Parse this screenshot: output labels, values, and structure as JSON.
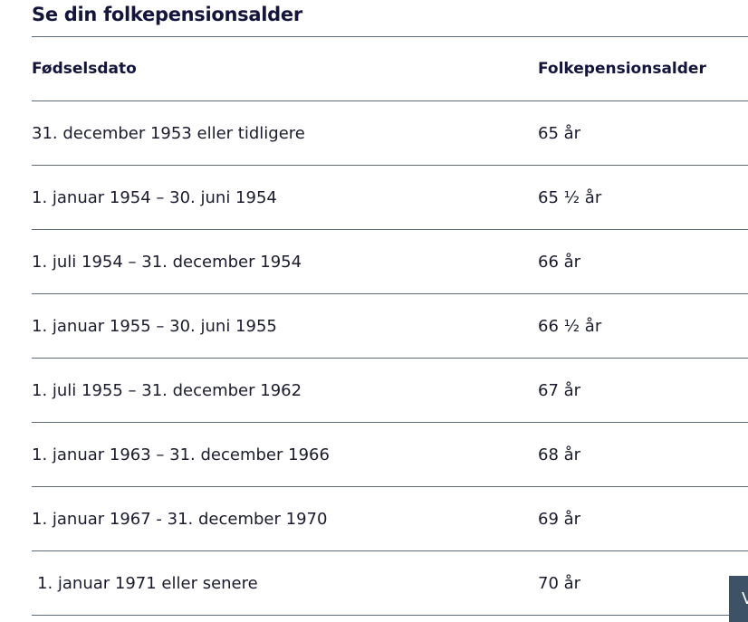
{
  "header": {
    "title": "Se din folkepensionsalder"
  },
  "table": {
    "columns": [
      "Fødselsdato",
      "Folkepensionsalder"
    ],
    "rows": [
      [
        "31. december 1953 eller tidligere",
        "65 år"
      ],
      [
        "1. januar 1954 – 30. juni 1954",
        "65 ½ år"
      ],
      [
        "1. juli 1954 – 31. december 1954",
        "66 år"
      ],
      [
        "1. januar 1955 – 30. juni 1955",
        "66 ½ år"
      ],
      [
        "1. juli 1955 – 31. december 1962",
        "67 år"
      ],
      [
        "1. januar 1963 – 31. december 1966",
        "68 år"
      ],
      [
        "1. januar 1967 - 31. december 1970",
        "69 år"
      ],
      [
        "1. januar 1971 eller senere",
        "70 år"
      ]
    ]
  },
  "button": {
    "label": "V"
  }
}
